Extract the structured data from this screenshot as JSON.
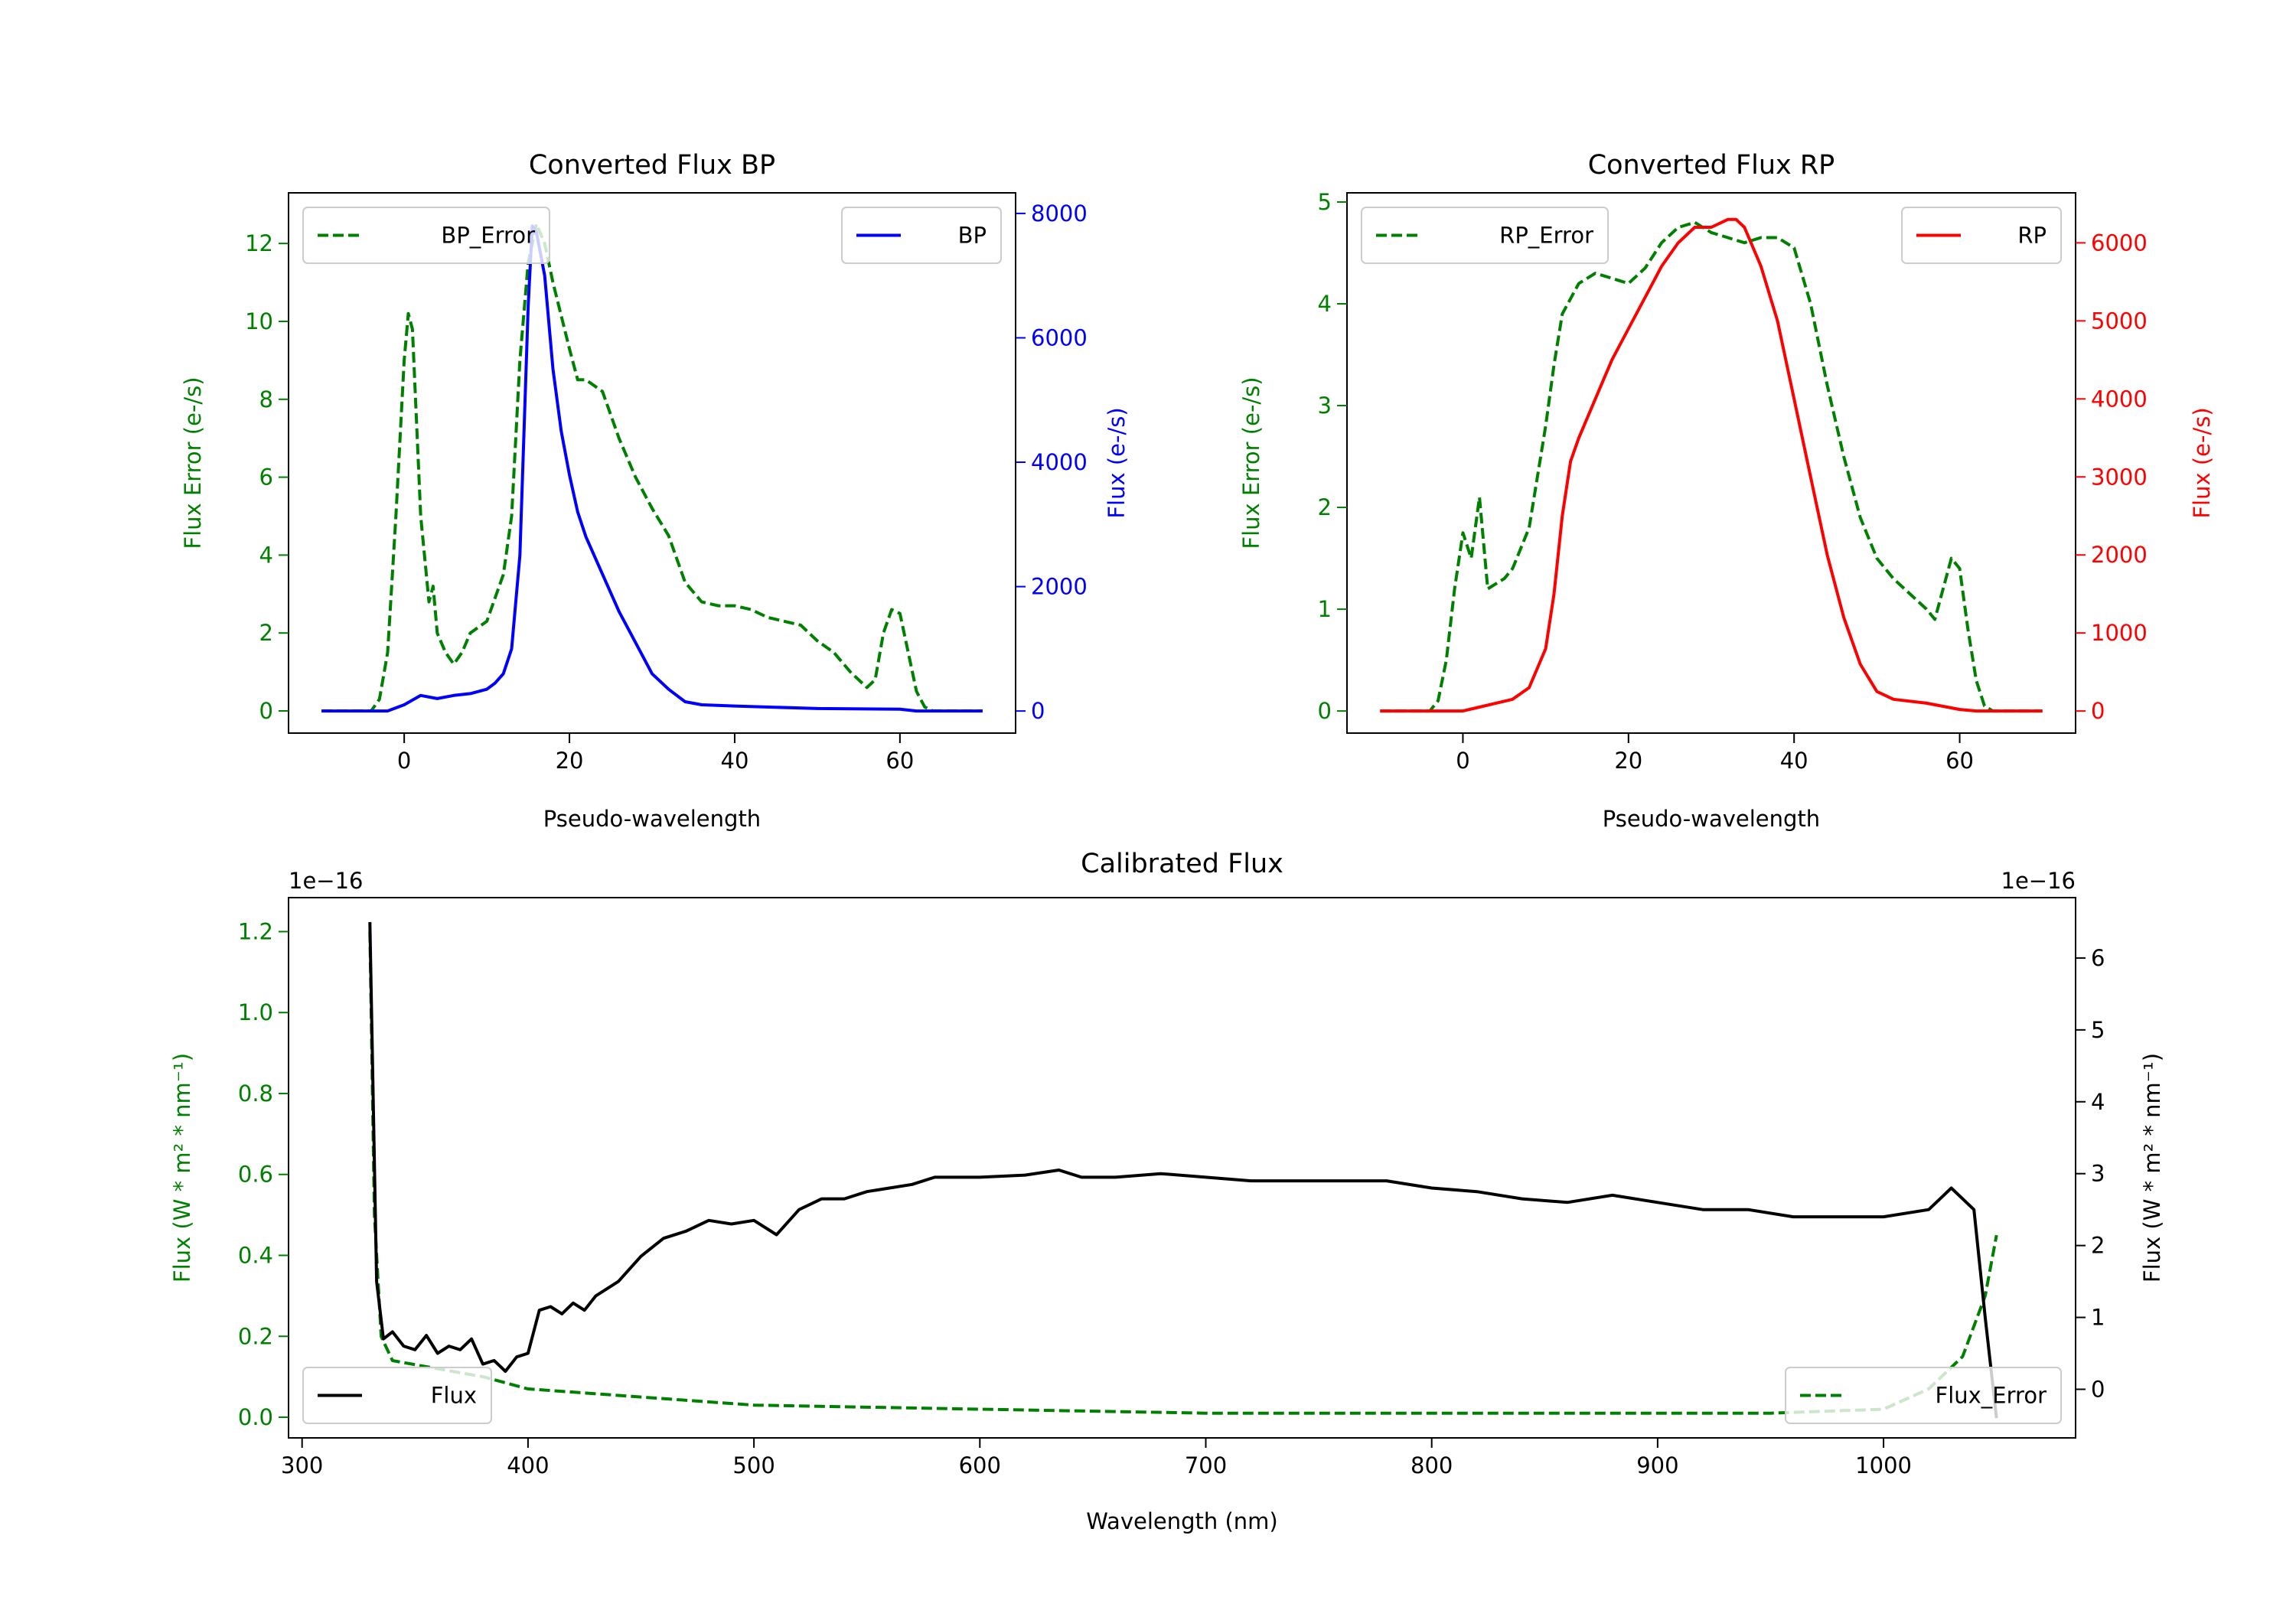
{
  "colors": {
    "error": "#008000",
    "bp": "#0000ff",
    "rp": "#ff0000",
    "flux": "#000000"
  },
  "chart_data": [
    {
      "type": "line",
      "title": "Converted Flux BP",
      "xlabel": "Pseudo-wavelength",
      "ylabel_left": "Flux Error (e-/s)",
      "ylabel_right": "Flux (e-/s)",
      "xlim": [
        -14,
        74
      ],
      "ylim_left": [
        -0.57,
        13.3
      ],
      "ylim_right": [
        -355,
        8331
      ],
      "xticks": [
        "0",
        "20",
        "40",
        "60"
      ],
      "yticks_left": [
        "0",
        "2",
        "4",
        "6",
        "8",
        "10",
        "12"
      ],
      "yticks_right": [
        "0",
        "2000",
        "4000",
        "6000",
        "8000"
      ],
      "legend_left": "BP_Error",
      "legend_right": "BP",
      "series": [
        {
          "name": "BP_Error",
          "axis": "left",
          "style": "dashed",
          "x": [
            -10,
            -4,
            -3,
            -2,
            -1,
            0,
            0.5,
            1,
            2,
            3,
            3.5,
            4,
            5,
            6,
            7,
            8,
            10,
            12,
            13,
            14,
            15,
            16,
            17,
            18,
            20,
            21,
            22,
            24,
            26,
            28,
            30,
            32,
            34,
            36,
            38,
            40,
            42,
            44,
            46,
            48,
            50,
            52,
            54,
            56,
            57,
            58,
            59,
            60,
            61,
            62,
            63,
            64,
            70
          ],
          "y": [
            0,
            0,
            0.3,
            1.5,
            5,
            9,
            10.2,
            9.8,
            5,
            2.8,
            3.2,
            2,
            1.5,
            1.2,
            1.5,
            2,
            2.3,
            3.5,
            5,
            9,
            11.5,
            12.5,
            12,
            11,
            9.3,
            8.5,
            8.5,
            8.2,
            7,
            6,
            5.2,
            4.5,
            3.3,
            2.8,
            2.7,
            2.7,
            2.6,
            2.4,
            2.3,
            2.2,
            1.8,
            1.5,
            1.0,
            0.6,
            0.8,
            2,
            2.6,
            2.5,
            1.5,
            0.5,
            0.1,
            0,
            0
          ]
        },
        {
          "name": "BP",
          "axis": "right",
          "style": "solid",
          "x": [
            -10,
            -2,
            0,
            2,
            4,
            6,
            8,
            10,
            11,
            12,
            13,
            14,
            15,
            15.5,
            16,
            17,
            18,
            19,
            20,
            21,
            22,
            24,
            26,
            28,
            30,
            32,
            34,
            36,
            40,
            50,
            60,
            62,
            70
          ],
          "y": [
            0,
            0,
            100,
            250,
            200,
            250,
            280,
            350,
            450,
            600,
            1000,
            2500,
            6500,
            7800,
            7700,
            7000,
            5500,
            4500,
            3800,
            3200,
            2800,
            2200,
            1600,
            1100,
            600,
            350,
            150,
            100,
            80,
            40,
            30,
            0,
            0
          ]
        }
      ]
    },
    {
      "type": "line",
      "title": "Converted Flux RP",
      "xlabel": "Pseudo-wavelength",
      "ylabel_left": "Flux Error (e-/s)",
      "ylabel_right": "Flux (e-/s)",
      "xlim": [
        -14,
        74
      ],
      "ylim_left": [
        -0.217,
        5.09
      ],
      "ylim_right": [
        -283,
        6641
      ],
      "xticks": [
        "0",
        "20",
        "40",
        "60"
      ],
      "yticks_left": [
        "0",
        "1",
        "2",
        "3",
        "4",
        "5"
      ],
      "yticks_right": [
        "0",
        "1000",
        "2000",
        "3000",
        "4000",
        "5000",
        "6000"
      ],
      "legend_left": "RP_Error",
      "legend_right": "RP",
      "series": [
        {
          "name": "RP_Error",
          "axis": "left",
          "style": "dashed",
          "x": [
            -10,
            -4,
            -3,
            -2,
            -1,
            0,
            1,
            2,
            3,
            4,
            5,
            6,
            8,
            10,
            11,
            12,
            14,
            16,
            18,
            20,
            22,
            24,
            26,
            28,
            30,
            32,
            34,
            36,
            38,
            40,
            42,
            44,
            46,
            48,
            50,
            52,
            54,
            56,
            57,
            58,
            59,
            60,
            61,
            62,
            63,
            64,
            70
          ],
          "y": [
            0,
            0,
            0.1,
            0.5,
            1.2,
            1.75,
            1.5,
            2.1,
            1.2,
            1.25,
            1.3,
            1.4,
            1.8,
            2.8,
            3.4,
            3.9,
            4.2,
            4.3,
            4.25,
            4.2,
            4.35,
            4.6,
            4.75,
            4.8,
            4.7,
            4.65,
            4.6,
            4.65,
            4.65,
            4.55,
            4.0,
            3.2,
            2.5,
            1.9,
            1.5,
            1.3,
            1.15,
            1.0,
            0.9,
            1.2,
            1.5,
            1.4,
            0.8,
            0.3,
            0.05,
            0,
            0
          ]
        },
        {
          "name": "RP",
          "axis": "right",
          "style": "solid",
          "x": [
            -10,
            0,
            2,
            4,
            6,
            8,
            10,
            11,
            12,
            13,
            14,
            16,
            18,
            20,
            22,
            24,
            26,
            28,
            30,
            32,
            33,
            34,
            36,
            38,
            40,
            42,
            44,
            46,
            48,
            50,
            52,
            56,
            58,
            60,
            62,
            70
          ],
          "y": [
            0,
            0,
            50,
            100,
            150,
            300,
            800,
            1500,
            2500,
            3200,
            3500,
            4000,
            4500,
            4900,
            5300,
            5700,
            6000,
            6200,
            6200,
            6300,
            6300,
            6200,
            5700,
            5000,
            4000,
            3000,
            2000,
            1200,
            600,
            250,
            150,
            100,
            60,
            20,
            0,
            0
          ]
        }
      ]
    },
    {
      "type": "line",
      "title": "Calibrated Flux",
      "xlabel": "Wavelength (nm)",
      "ylabel_left": "Flux (W * m² * nm⁻¹)",
      "ylabel_right": "Flux (W * m² * nm⁻¹)",
      "offset_left": "1e−16",
      "offset_right": "1e−16",
      "xlim": [
        294,
        1085
      ],
      "ylim_left": [
        -0.051,
        1.284
      ],
      "ylim_right": [
        -0.676,
        6.84
      ],
      "xticks": [
        "300",
        "400",
        "500",
        "600",
        "700",
        "800",
        "900",
        "1000"
      ],
      "yticks_left": [
        "0.0",
        "0.2",
        "0.4",
        "0.6",
        "0.8",
        "1.0",
        "1.2"
      ],
      "yticks_right": [
        "0",
        "1",
        "2",
        "3",
        "4",
        "5",
        "6"
      ],
      "legend_left": "Flux",
      "legend_right": "Flux_Error",
      "series": [
        {
          "name": "Flux_Error",
          "axis": "left",
          "style": "dashed",
          "x": [
            330,
            332,
            335,
            340,
            360,
            380,
            400,
            450,
            500,
            600,
            700,
            800,
            900,
            950,
            1000,
            1020,
            1035,
            1045,
            1050
          ],
          "y": [
            1.2,
            0.5,
            0.2,
            0.14,
            0.12,
            0.1,
            0.07,
            0.05,
            0.03,
            0.02,
            0.01,
            0.01,
            0.01,
            0.01,
            0.02,
            0.07,
            0.15,
            0.3,
            0.45
          ]
        },
        {
          "name": "Flux",
          "axis": "right",
          "style": "solid",
          "x": [
            330,
            333,
            336,
            340,
            345,
            350,
            355,
            360,
            365,
            370,
            375,
            380,
            385,
            390,
            395,
            400,
            405,
            410,
            415,
            420,
            425,
            430,
            440,
            450,
            460,
            470,
            480,
            490,
            500,
            510,
            520,
            530,
            540,
            550,
            560,
            570,
            580,
            600,
            620,
            635,
            645,
            660,
            680,
            700,
            720,
            740,
            760,
            780,
            800,
            820,
            840,
            860,
            880,
            900,
            920,
            940,
            960,
            980,
            1000,
            1020,
            1030,
            1040,
            1045,
            1050
          ],
          "y": [
            6.5,
            1.5,
            0.7,
            0.8,
            0.6,
            0.55,
            0.75,
            0.5,
            0.6,
            0.55,
            0.7,
            0.35,
            0.4,
            0.25,
            0.45,
            0.5,
            1.1,
            1.15,
            1.05,
            1.2,
            1.1,
            1.3,
            1.5,
            1.85,
            2.1,
            2.2,
            2.35,
            2.3,
            2.35,
            2.15,
            2.5,
            2.65,
            2.65,
            2.75,
            2.8,
            2.85,
            2.95,
            2.95,
            2.98,
            3.05,
            2.95,
            2.95,
            3.0,
            2.95,
            2.9,
            2.9,
            2.9,
            2.9,
            2.8,
            2.75,
            2.65,
            2.6,
            2.7,
            2.6,
            2.5,
            2.5,
            2.4,
            2.4,
            2.4,
            2.5,
            2.8,
            2.5,
            1.0,
            -0.4
          ]
        }
      ]
    }
  ]
}
